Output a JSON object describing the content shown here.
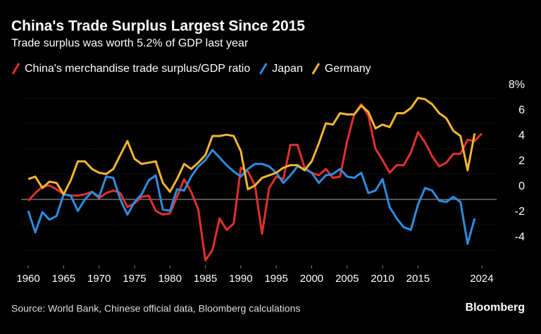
{
  "chart_data": {
    "type": "line",
    "title": "China's Trade Surplus Largest Since 2015",
    "subtitle": "Trade surplus was worth 5.2% of GDP last year",
    "source": "Source: World Bank, Chinese official data, Bloomberg calculations",
    "credit": "Bloomberg",
    "x": [
      1960,
      1961,
      1962,
      1963,
      1964,
      1965,
      1966,
      1967,
      1968,
      1969,
      1970,
      1971,
      1972,
      1973,
      1974,
      1975,
      1976,
      1977,
      1978,
      1979,
      1980,
      1981,
      1982,
      1983,
      1984,
      1985,
      1986,
      1987,
      1988,
      1989,
      1990,
      1991,
      1992,
      1993,
      1994,
      1995,
      1996,
      1997,
      1998,
      1999,
      2000,
      2001,
      2002,
      2003,
      2004,
      2005,
      2006,
      2007,
      2008,
      2009,
      2010,
      2011,
      2012,
      2013,
      2014,
      2015,
      2016,
      2017,
      2018,
      2019,
      2020,
      2021,
      2022,
      2023,
      2024
    ],
    "series": [
      {
        "name": "China's merchandise trade surplus/GDP ratio",
        "color": "#e0312c",
        "values": [
          -0.1,
          0.5,
          1.0,
          1.1,
          0.8,
          0.4,
          0.3,
          0.3,
          0.4,
          0.6,
          0.1,
          0.5,
          0.7,
          0.5,
          -0.6,
          -0.3,
          0.2,
          0.3,
          -0.9,
          -1.2,
          -1.1,
          0.2,
          1.6,
          0.6,
          -0.8,
          -4.8,
          -4.0,
          -1.5,
          -2.4,
          -1.9,
          2.5,
          2.2,
          1.1,
          -2.7,
          0.9,
          1.8,
          1.6,
          4.3,
          4.3,
          2.5,
          2.1,
          1.9,
          2.4,
          1.7,
          1.8,
          4.6,
          6.7,
          7.5,
          6.6,
          4.0,
          3.1,
          2.1,
          2.7,
          2.7,
          3.7,
          5.3,
          4.5,
          3.4,
          2.6,
          2.9,
          3.6,
          3.6,
          4.7,
          4.6,
          5.2
        ]
      },
      {
        "name": "Japan",
        "color": "#2e8ce0",
        "values": [
          -0.9,
          -2.6,
          -1.0,
          -1.6,
          -1.3,
          0.4,
          0.3,
          -0.9,
          0.0,
          0.6,
          0.2,
          1.8,
          1.7,
          0.0,
          -1.2,
          -0.2,
          0.4,
          1.5,
          1.9,
          -0.8,
          -0.9,
          0.8,
          0.7,
          1.8,
          2.6,
          3.1,
          3.9,
          3.3,
          2.7,
          2.2,
          1.8,
          2.4,
          2.8,
          2.8,
          2.6,
          2.1,
          1.3,
          1.9,
          2.6,
          2.4,
          2.1,
          1.3,
          1.9,
          2.0,
          2.4,
          1.8,
          1.7,
          2.1,
          0.5,
          0.7,
          1.6,
          -0.6,
          -1.5,
          -2.2,
          -2.4,
          -0.4,
          0.9,
          0.7,
          -0.1,
          -0.2,
          0.2,
          -0.2,
          -3.5,
          -1.5,
          null
        ]
      },
      {
        "name": "Germany",
        "color": "#f2b632",
        "values": [
          1.6,
          1.8,
          0.9,
          1.4,
          1.3,
          0.4,
          1.5,
          3.0,
          3.0,
          2.4,
          2.1,
          2.0,
          2.4,
          3.5,
          4.6,
          3.2,
          2.8,
          2.9,
          3.0,
          1.3,
          0.6,
          1.6,
          2.8,
          2.4,
          2.9,
          3.5,
          5.0,
          5.0,
          5.1,
          5.0,
          3.8,
          0.8,
          1.1,
          1.7,
          1.9,
          2.1,
          2.5,
          2.7,
          2.7,
          2.3,
          3.0,
          4.4,
          6.0,
          5.9,
          6.8,
          6.7,
          6.7,
          7.4,
          6.9,
          5.6,
          5.9,
          5.7,
          6.8,
          6.8,
          7.2,
          8.0,
          7.9,
          7.5,
          6.8,
          6.4,
          5.4,
          5.0,
          2.3,
          5.2,
          null
        ]
      }
    ],
    "xlim": [
      1959,
      2025.5
    ],
    "xticks": [
      1960,
      1965,
      1970,
      1975,
      1980,
      1985,
      1990,
      1995,
      2000,
      2005,
      2010,
      2015,
      2024
    ],
    "ylim": [
      -5.2,
      8.5
    ],
    "yticks": [
      -4,
      -2,
      0,
      2,
      4,
      6,
      {
        "value": 8,
        "label": "8%"
      }
    ],
    "grid": true
  }
}
